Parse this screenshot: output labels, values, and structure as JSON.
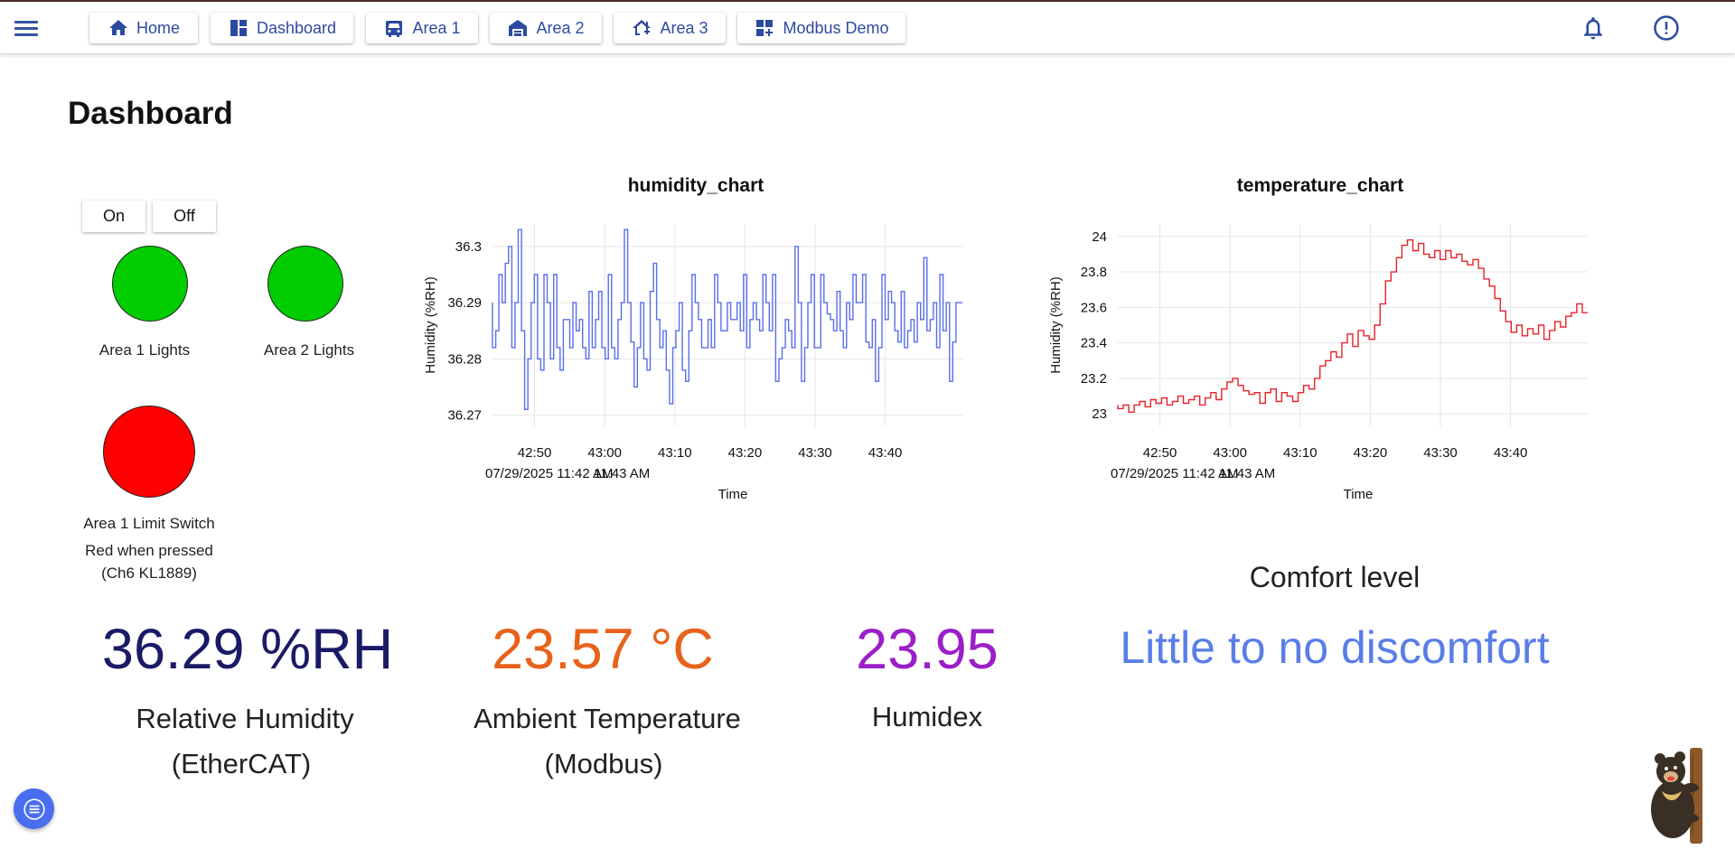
{
  "nav": {
    "tabs": [
      {
        "label": "Home",
        "icon": "home-icon"
      },
      {
        "label": "Dashboard",
        "icon": "dashboard-icon"
      },
      {
        "label": "Area 1",
        "icon": "car-icon"
      },
      {
        "label": "Area 2",
        "icon": "garage-icon"
      },
      {
        "label": "Area 3",
        "icon": "house-icon"
      },
      {
        "label": "Modbus Demo",
        "icon": "grid-plus-icon"
      }
    ],
    "icons": [
      "menu-icon",
      "bell-icon",
      "info-icon"
    ],
    "accent": "#2c4aa0"
  },
  "page": {
    "title": "Dashboard"
  },
  "controls": {
    "on_label": "On",
    "off_label": "Off"
  },
  "indicators": [
    {
      "label": "Area 1 Lights",
      "color": "#00cc00"
    },
    {
      "label": "Area 2 Lights",
      "color": "#00cc00"
    },
    {
      "label": "Area 1 Limit Switch",
      "color": "#ff0000",
      "note_1": "Red when pressed",
      "note_2": "(Ch6 KL1889)"
    }
  ],
  "chart_data": [
    {
      "type": "line",
      "title": "humidity_chart",
      "xlabel": "Time",
      "ylabel": "Humidity (%RH)",
      "x_ticks": [
        "42:50",
        "43:00",
        "43:10",
        "43:20",
        "43:30",
        "43:40"
      ],
      "x_date_label": "07/29/2025 11:42 AM",
      "x_date_label_overlap": "11:43 AM",
      "y_ticks": [
        "36.27",
        "36.28",
        "36.29",
        "36.3"
      ],
      "ylim": [
        36.268,
        36.304
      ],
      "xlim_seconds": [
        4,
        71
      ],
      "color": "#5a6ee8",
      "grid": true,
      "series": [
        {
          "values": [
            36.29,
            36.282,
            36.285,
            36.295,
            36.29,
            36.297,
            36.3,
            36.282,
            36.29,
            36.303,
            36.285,
            36.271,
            36.28,
            36.29,
            36.295,
            36.28,
            36.278,
            36.295,
            36.29,
            36.28,
            36.295,
            36.282,
            36.278,
            36.287,
            36.287,
            36.282,
            36.29,
            36.285,
            36.287,
            36.282,
            36.28,
            36.292,
            36.282,
            36.287,
            36.292,
            36.282,
            36.28,
            36.295,
            36.282,
            36.28,
            36.287,
            36.29,
            36.303,
            36.29,
            36.283,
            36.275,
            36.282,
            36.29,
            36.28,
            36.278,
            36.292,
            36.297,
            36.287,
            36.282,
            36.285,
            36.278,
            36.272,
            36.282,
            36.285,
            36.29,
            36.278,
            36.276,
            36.285,
            36.295,
            36.29,
            36.287,
            36.282,
            36.282,
            36.287,
            36.282,
            36.295,
            36.29,
            36.285,
            36.285,
            36.29,
            36.287,
            36.287,
            36.29,
            36.285,
            36.295,
            36.282,
            36.287,
            36.29,
            36.287,
            36.285,
            36.295,
            36.29,
            36.285,
            36.295,
            36.276,
            36.28,
            36.282,
            36.287,
            36.285,
            36.282,
            36.3,
            36.29,
            36.276,
            36.282,
            36.29,
            36.295,
            36.282,
            36.282,
            36.295,
            36.29,
            36.288,
            36.287,
            36.285,
            36.292,
            36.285,
            36.282,
            36.29,
            36.287,
            36.295,
            36.29,
            36.29,
            36.295,
            36.283,
            36.282,
            36.287,
            36.276,
            36.282,
            36.295,
            36.287,
            36.292,
            36.29,
            36.285,
            36.283,
            36.292,
            36.282,
            36.285,
            36.287,
            36.283,
            36.29,
            36.287,
            36.298,
            36.285,
            36.287,
            36.29,
            36.282,
            36.295,
            36.285,
            36.29,
            36.276,
            36.283,
            36.29,
            36.29
          ]
        }
      ]
    },
    {
      "type": "line",
      "title": "temperature_chart",
      "xlabel": "Time",
      "ylabel": "Humidity (%RH)",
      "x_ticks": [
        "42:50",
        "43:00",
        "43:10",
        "43:20",
        "43:30",
        "43:40"
      ],
      "x_date_label": "07/29/2025 11:42 AM",
      "x_date_label_overlap": "11:43 AM",
      "y_ticks": [
        "23",
        "23.2",
        "23.4",
        "23.6",
        "23.8",
        "24"
      ],
      "ylim": [
        22.93,
        24.07
      ],
      "xlim_seconds": [
        4,
        71
      ],
      "color": "#e8222a",
      "grid": true,
      "series": [
        {
          "values": [
            23.05,
            23.03,
            23.05,
            23.01,
            23.05,
            23.07,
            23.04,
            23.08,
            23.06,
            23.09,
            23.05,
            23.07,
            23.1,
            23.06,
            23.08,
            23.1,
            23.05,
            23.09,
            23.12,
            23.08,
            23.14,
            23.18,
            23.2,
            23.16,
            23.13,
            23.11,
            23.12,
            23.06,
            23.12,
            23.14,
            23.07,
            23.12,
            23.1,
            23.07,
            23.12,
            23.16,
            23.14,
            23.2,
            23.27,
            23.3,
            23.35,
            23.32,
            23.4,
            23.45,
            23.38,
            23.47,
            23.44,
            23.42,
            23.5,
            23.62,
            23.75,
            23.8,
            23.88,
            23.95,
            23.98,
            23.92,
            23.96,
            23.9,
            23.88,
            23.92,
            23.87,
            23.92,
            23.88,
            23.9,
            23.86,
            23.84,
            23.87,
            23.82,
            23.76,
            23.72,
            23.65,
            23.58,
            23.52,
            23.46,
            23.5,
            23.44,
            23.48,
            23.45,
            23.5,
            23.42,
            23.47,
            23.52,
            23.49,
            23.55,
            23.57,
            23.62,
            23.57
          ]
        }
      ]
    }
  ],
  "readings": [
    {
      "value": "36.29 %RH",
      "caption_1": "Relative Humidity",
      "caption_2": "(EtherCAT)",
      "color": "#1a1a66"
    },
    {
      "value": "23.57 °C",
      "caption_1": "Ambient Temperature",
      "caption_2": "(Modbus)",
      "color": "#e8621a"
    },
    {
      "value": "23.95",
      "caption_1": "Humidex",
      "color": "#9b1fc9"
    }
  ],
  "comfort": {
    "heading": "Comfort level",
    "status": "Little to no discomfort",
    "color": "#5a7ee8"
  },
  "assistant": {
    "icon": "bear-mascot-icon"
  },
  "fab": {
    "icon": "list-icon"
  }
}
